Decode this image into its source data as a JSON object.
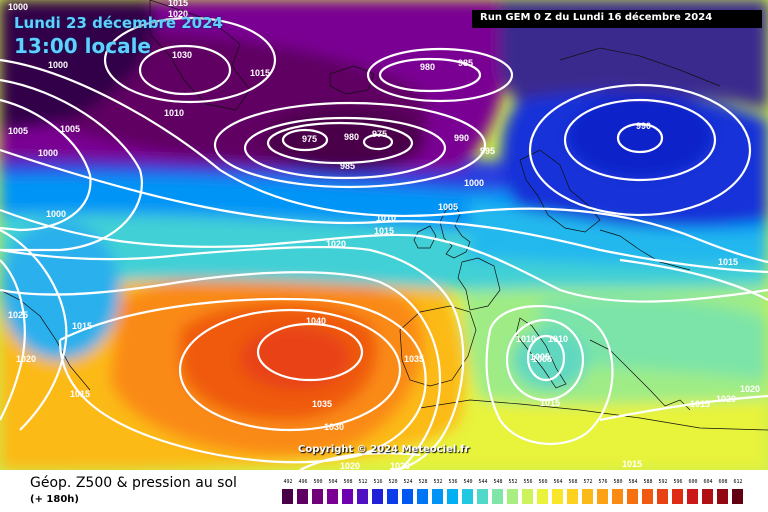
{
  "header": {
    "date_text": "Lundi 23 décembre 2024",
    "time_text": "13:00 locale",
    "run_text": "Run GEM 0 Z du Lundi 16 décembre 2024"
  },
  "footer": {
    "product_text": "Géop. Z500 & pression au sol",
    "lead_text": "(+ 180h)",
    "copyright_text": "Copyright © 2024 Meteociel.fr"
  },
  "scale": {
    "labels": [
      "492",
      "496",
      "500",
      "504",
      "508",
      "512",
      "516",
      "520",
      "524",
      "528",
      "532",
      "536",
      "540",
      "544",
      "548",
      "552",
      "556",
      "560",
      "564",
      "568",
      "572",
      "576",
      "580",
      "584",
      "588",
      "592",
      "596",
      "600",
      "604",
      "608",
      "612"
    ],
    "colors": [
      "#4a0048",
      "#5e0062",
      "#700079",
      "#7a0093",
      "#6d00b0",
      "#4f10c4",
      "#2020d8",
      "#0a3ce8",
      "#0058f0",
      "#0076f4",
      "#0094f6",
      "#00b0f2",
      "#20c8e2",
      "#50d8c8",
      "#80e6a8",
      "#a8ee80",
      "#cdf35c",
      "#e8f33a",
      "#f8e628",
      "#fcd21e",
      "#fcba18",
      "#fca214",
      "#fa8a12",
      "#f67010",
      "#ef5a10",
      "#e84212",
      "#de2c14",
      "#cc1818",
      "#b00f14",
      "#920812",
      "#600010"
    ]
  },
  "pressure_labels": [
    {
      "text": "1000"
    },
    {
      "text": "1015"
    },
    {
      "text": "1020"
    },
    {
      "text": "1030"
    },
    {
      "text": "1015"
    },
    {
      "text": "1000"
    },
    {
      "text": "1010"
    },
    {
      "text": "980"
    },
    {
      "text": "985"
    },
    {
      "text": "1005"
    },
    {
      "text": "1005"
    },
    {
      "text": "975"
    },
    {
      "text": "980"
    },
    {
      "text": "975"
    },
    {
      "text": "985"
    },
    {
      "text": "990"
    },
    {
      "text": "995"
    },
    {
      "text": "990"
    },
    {
      "text": "1000"
    },
    {
      "text": "1000"
    },
    {
      "text": "1000"
    },
    {
      "text": "1005"
    },
    {
      "text": "1010"
    },
    {
      "text": "1015"
    },
    {
      "text": "1020"
    },
    {
      "text": "1015"
    },
    {
      "text": "1025"
    },
    {
      "text": "1015"
    },
    {
      "text": "1040"
    },
    {
      "text": "1020"
    },
    {
      "text": "1035"
    },
    {
      "text": "1015"
    },
    {
      "text": "1035"
    },
    {
      "text": "1010"
    },
    {
      "text": "1010"
    },
    {
      "text": "1005"
    },
    {
      "text": "1015"
    },
    {
      "text": "1030"
    },
    {
      "text": "1015"
    },
    {
      "text": "1020"
    },
    {
      "text": "1020"
    },
    {
      "text": "1020"
    },
    {
      "text": "1015"
    },
    {
      "text": "1020"
    },
    {
      "text": "1005"
    }
  ],
  "colors": {
    "header_text": "#5fd0ff",
    "run_box": "#000000",
    "isobar": "#ffffff"
  }
}
